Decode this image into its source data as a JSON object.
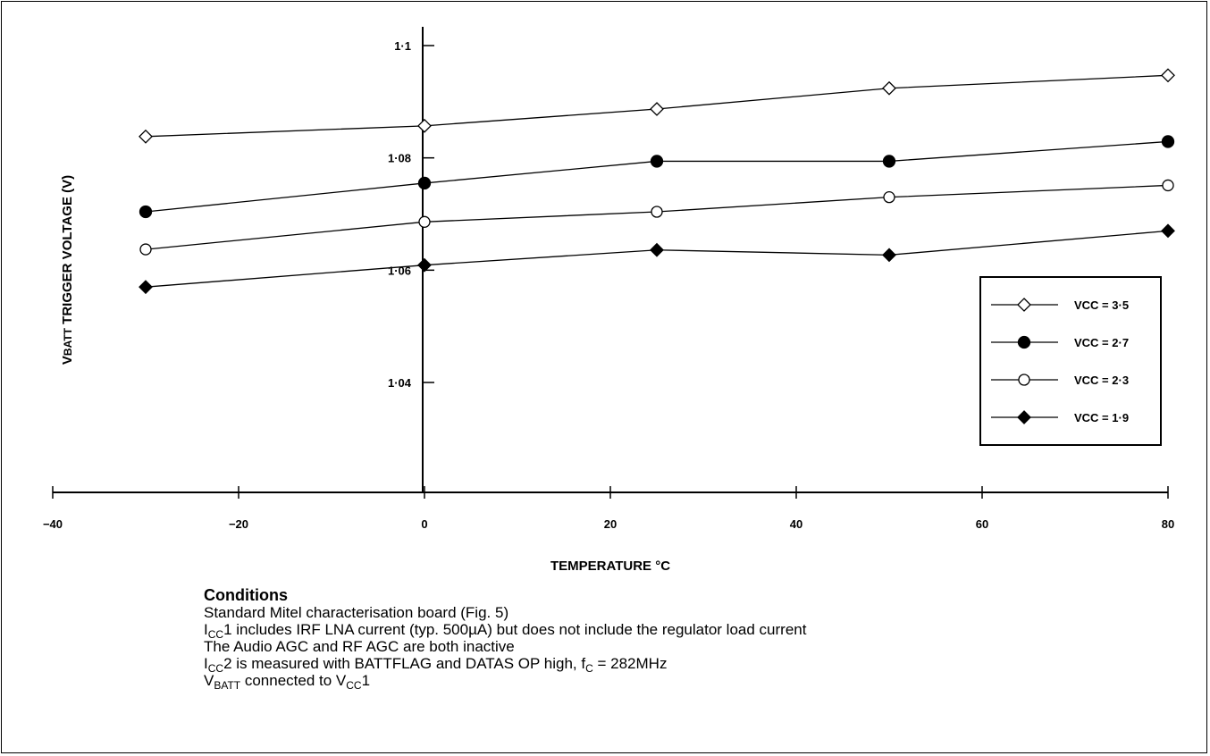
{
  "chart_data": {
    "type": "line",
    "xlabel": "TEMPERATURE °C",
    "ylabel_main": "V",
    "ylabel_sub": "BATT",
    "ylabel_rest": " TRIGGER VOLTAGE (V)",
    "xlim": [
      -40,
      80
    ],
    "ylim": [
      1.03,
      1.1
    ],
    "x_ticks": [
      -40,
      -20,
      0,
      20,
      40,
      60,
      80
    ],
    "x_tick_labels": [
      "−40",
      "−20",
      "0",
      "20",
      "40",
      "60",
      "80"
    ],
    "y_ticks": [
      1.04,
      1.06,
      1.08,
      1.1
    ],
    "y_tick_labels": [
      "1·04",
      "1·06",
      "1·08",
      "1·1"
    ],
    "legend_position": "right",
    "grid": false,
    "x": [
      -30,
      0,
      25,
      50,
      80
    ],
    "series": [
      {
        "name": "VCC = 3·5",
        "marker": "open-diamond",
        "values": [
          1.0838,
          1.0857,
          1.0887,
          1.0924,
          1.0947
        ]
      },
      {
        "name": "VCC = 2·7",
        "marker": "filled-circle",
        "values": [
          1.0704,
          1.0755,
          1.0794,
          1.0794,
          1.0829
        ]
      },
      {
        "name": "VCC = 2·3",
        "marker": "open-circle",
        "values": [
          1.0637,
          1.0686,
          1.0704,
          1.073,
          1.0751
        ]
      },
      {
        "name": "VCC = 1·9",
        "marker": "filled-diamond",
        "values": [
          1.057,
          1.0609,
          1.0636,
          1.0627,
          1.067
        ]
      }
    ]
  },
  "conditions": {
    "title": "Conditions",
    "line1": "Standard Mitel characterisation board (Fig. 5)",
    "line2_main": "I",
    "line2_sub": "CC",
    "line2_rest": "1 includes IRF LNA current (typ. 500µA) but does not include the regulator load current",
    "line3": "The Audio AGC and RF AGC are both inactive",
    "line4_main": "I",
    "line4_sub": "CC",
    "line4_mid": "2 is measured with BATTFLAG and DATAS OP high, f",
    "line4_sub2": "C",
    "line4_rest": " = 282MHz",
    "line5_main": "V",
    "line5_sub": "BATT",
    "line5_mid": " connected to V",
    "line5_sub2": "CC",
    "line5_rest": "1"
  }
}
